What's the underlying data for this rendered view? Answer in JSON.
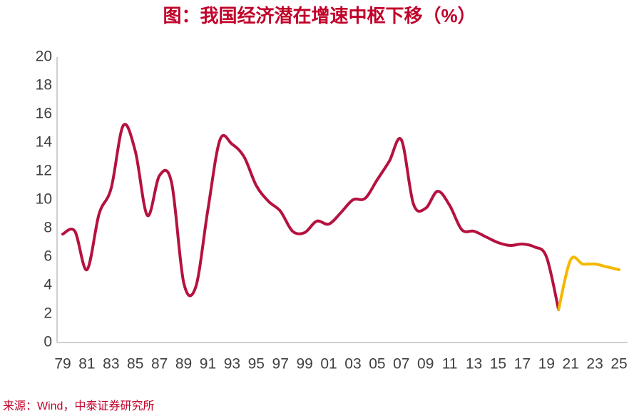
{
  "chart_data": {
    "type": "line",
    "title": "图：我国经济潜在增速中枢下移（%）",
    "source": "来源：Wind，中泰证券研究所",
    "categories": [
      "79",
      null,
      "81",
      null,
      "83",
      null,
      "85",
      null,
      "87",
      null,
      "89",
      null,
      "91",
      null,
      "93",
      null,
      "95",
      null,
      "97",
      null,
      "99",
      null,
      "01",
      null,
      "03",
      null,
      "05",
      null,
      "07",
      null,
      "09",
      null,
      "11",
      null,
      "13",
      null,
      "15",
      null,
      "17",
      null,
      "19",
      null,
      "21",
      null,
      "23",
      null,
      "25"
    ],
    "series": [
      {
        "color": "#b5123f",
        "values": [
          7.6,
          7.8,
          5.1,
          9.0,
          10.8,
          15.2,
          13.4,
          8.9,
          11.7,
          11.2,
          4.2,
          3.9,
          9.3,
          14.2,
          13.9,
          13.0,
          11.0,
          9.9,
          9.2,
          7.8,
          7.7,
          8.5,
          8.3,
          9.1,
          10.0,
          10.1,
          11.4,
          12.7,
          14.2,
          9.7,
          9.4,
          10.6,
          9.6,
          7.9,
          7.8,
          7.4,
          7.0,
          6.8,
          6.9,
          6.7,
          6.0,
          2.3,
          null,
          null,
          null,
          null,
          null
        ]
      },
      {
        "color": "#f5b800",
        "values": [
          null,
          null,
          null,
          null,
          null,
          null,
          null,
          null,
          null,
          null,
          null,
          null,
          null,
          null,
          null,
          null,
          null,
          null,
          null,
          null,
          null,
          null,
          null,
          null,
          null,
          null,
          null,
          null,
          null,
          null,
          null,
          null,
          null,
          null,
          null,
          null,
          null,
          null,
          null,
          null,
          null,
          2.3,
          5.8,
          5.5,
          5.5,
          5.3,
          5.1
        ]
      }
    ],
    "ylim": [
      0,
      20
    ],
    "yticks": [
      0,
      2,
      4,
      6,
      8,
      10,
      12,
      14,
      16,
      18,
      20
    ]
  }
}
